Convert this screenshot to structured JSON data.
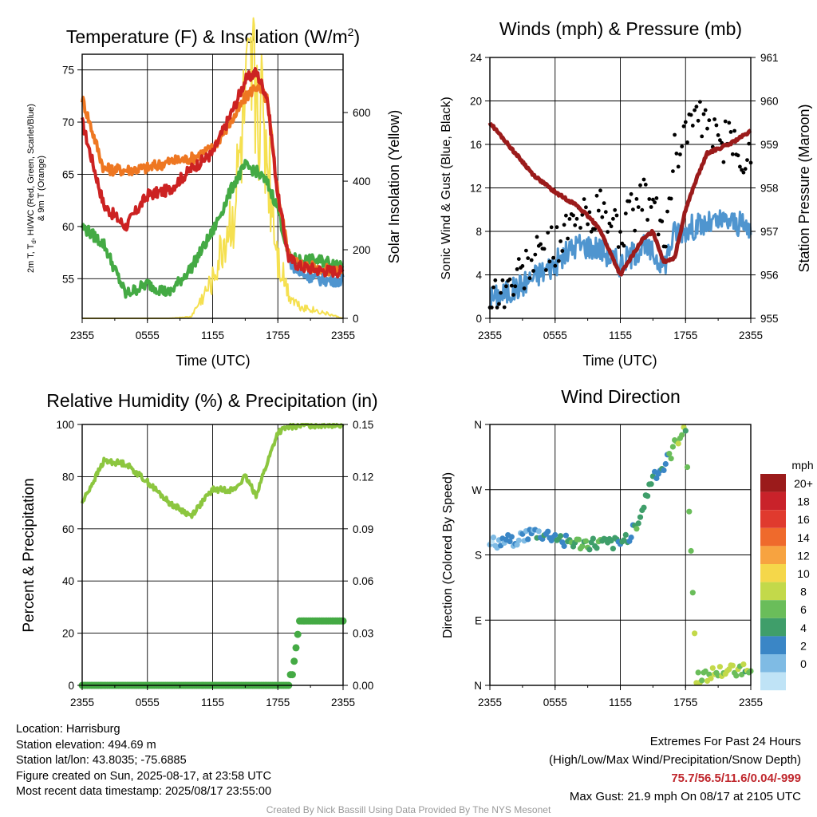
{
  "colors": {
    "red": "#cc2222",
    "orange": "#ee7722",
    "green": "#44aa44",
    "yellow": "#f5e050",
    "blue": "#4f95cf",
    "maroon": "#9b1b1b",
    "lightgreen": "#8cc63f",
    "black": "#000000",
    "extreme": "#c0272d"
  },
  "x_ticks": [
    "2355",
    "0555",
    "1155",
    "1755",
    "2355"
  ],
  "temp": {
    "title": "Temperature (F) & Insolation (W/m",
    "title_sup": "2",
    "title_end": ")",
    "ylabel_line1": "2m T, T",
    "ylabel_sub": "d",
    "ylabel_line1_end": ", HI/WC (Red, Green, Scarlet/Blue)",
    "ylabel_line2": "& 9m T (Orange)",
    "yright_label": "Solar Insolation (Yellow)",
    "xlabel": "Time (UTC)",
    "y_ticks": [
      "55",
      "60",
      "65",
      "70",
      "75"
    ],
    "y2_ticks": [
      "0",
      "200",
      "400",
      "600"
    ]
  },
  "wind": {
    "title": "Winds (mph) & Pressure (mb)",
    "ylabel": "Sonic Wind & Gust (Blue, Black)",
    "yright_label": "Station Pressure (Maroon)",
    "xlabel": "Time (UTC)",
    "y_ticks": [
      "0",
      "4",
      "8",
      "12",
      "16",
      "20",
      "24"
    ],
    "y2_ticks": [
      "955",
      "956",
      "957",
      "958",
      "959",
      "960",
      "961"
    ]
  },
  "rh": {
    "title": "Relative Humidity (%) & Precipitation (in)",
    "ylabel": "Percent & Precipitation",
    "y_ticks": [
      "0",
      "20",
      "40",
      "60",
      "80",
      "100"
    ],
    "y2_ticks": [
      "0.00",
      "0.03",
      "0.06",
      "0.09",
      "0.12",
      "0.15"
    ]
  },
  "dir": {
    "title": "Wind Direction",
    "ylabel": "Direction (Colored By Speed)",
    "y_ticks": [
      "N",
      "E",
      "S",
      "W",
      "N"
    ],
    "legend_title": "mph",
    "legend_labels": [
      "20+",
      "18",
      "16",
      "14",
      "12",
      "10",
      "8",
      "6",
      "4",
      "2",
      "0"
    ],
    "legend_colors": [
      "#9b1b1b",
      "#c9222a",
      "#e03a2e",
      "#ef6a2c",
      "#f7a340",
      "#f5d74a",
      "#c3d94a",
      "#6abd5a",
      "#3f9e6a",
      "#3a86c6",
      "#7fbbe4",
      "#bfe3f6"
    ]
  },
  "info": {
    "location": "Location: Harrisburg",
    "elevation": "Station elevation: 494.69 m",
    "latlon": "Station lat/lon: 43.8035; -75.6885",
    "created": "Figure created on Sun, 2025-08-17, at 23:58 UTC",
    "recent": "Most recent data timestamp: 2025/08/17 23:55:00"
  },
  "extremes": {
    "line1": "Extremes For Past 24 Hours",
    "line2": "(High/Low/Max Wind/Precipitation/Snow Depth)",
    "values": "75.7/56.5/11.6/0.04/-999",
    "gust": "Max Gust: 21.9 mph On 08/17 at 2105 UTC"
  },
  "credit": "Created By Nick Bassill Using Data Provided By The NYS Mesonet",
  "chart_data": [
    {
      "type": "line",
      "title": "Temperature (F) & Insolation (W/m2)",
      "xlabel": "Time (UTC)",
      "ylabel": "2m T, Td, HI/WC (Red, Green, Scarlet/Blue) & 9m T (Orange)",
      "y2label": "Solar Insolation (Yellow)",
      "x_hours": [
        0,
        2,
        4,
        6,
        8,
        10,
        12,
        14,
        15,
        16,
        17,
        18,
        19,
        20,
        22,
        24
      ],
      "ylim": [
        51.2,
        76.5
      ],
      "y2lim": [
        0,
        770
      ],
      "series": [
        {
          "name": "2m T (Red)",
          "values": [
            70,
            62,
            60,
            63,
            63.5,
            65.5,
            67,
            71.5,
            74,
            74.8,
            72.5,
            63,
            57,
            56.2,
            55.8,
            55.7
          ]
        },
        {
          "name": "9m T (Orange)",
          "values": [
            72.3,
            65.5,
            65.4,
            65.6,
            66.2,
            66.5,
            67.5,
            70.5,
            72.3,
            73.5,
            72.2,
            63.2,
            57.3,
            56.4,
            55.9,
            55.5
          ]
        },
        {
          "name": "Td (Green)",
          "values": [
            60,
            58.3,
            53.5,
            54.5,
            53.6,
            56,
            59.5,
            64.2,
            65.8,
            65.3,
            64.2,
            61.8,
            57,
            56.8,
            56.7,
            56.4
          ]
        },
        {
          "name": "WC (Blue)",
          "values": [
            null,
            null,
            null,
            null,
            null,
            null,
            null,
            null,
            null,
            null,
            null,
            null,
            56.8,
            55.5,
            54.9,
            54.8
          ]
        },
        {
          "name": "Solar Insolation (Yellow)",
          "values": [
            0,
            0,
            0,
            0,
            0,
            5,
            120,
            350,
            650,
            750,
            540,
            200,
            80,
            40,
            20,
            0
          ]
        }
      ]
    },
    {
      "type": "line",
      "title": "Winds (mph) & Pressure (mb)",
      "xlabel": "Time (UTC)",
      "ylabel": "Sonic Wind & Gust (Blue, Black)",
      "y2label": "Station Pressure (Maroon)",
      "x_hours": [
        0,
        2,
        4,
        6,
        8,
        10,
        12,
        14,
        15,
        16,
        17,
        18,
        19,
        20,
        22,
        24
      ],
      "ylim": [
        0,
        24
      ],
      "y2lim": [
        955,
        961
      ],
      "series": [
        {
          "name": "Sonic Wind (Blue)",
          "values": [
            1.8,
            2.5,
            3.8,
            5,
            6.8,
            6.5,
            5,
            6.6,
            6,
            4.8,
            8,
            8.2,
            8.5,
            8.6,
            9,
            8.2
          ]
        },
        {
          "name": "Gust (Black)",
          "values": [
            2,
            3,
            5.5,
            6.8,
            9,
            10,
            8,
            11,
            10.5,
            7,
            15,
            17.5,
            18.5,
            17,
            16,
            14.5
          ]
        },
        {
          "name": "Station Pressure (Maroon)",
          "values": [
            959.5,
            958.9,
            958.3,
            957.9,
            957.6,
            957.1,
            956,
            956.8,
            957,
            956.3,
            956.4,
            957.5,
            958.2,
            958.8,
            959,
            959.3
          ]
        }
      ]
    },
    {
      "type": "line",
      "title": "Relative Humidity (%) & Precipitation (in)",
      "ylabel": "Percent & Precipitation",
      "x_hours": [
        0,
        2,
        4,
        6,
        8,
        10,
        12,
        14,
        15,
        16,
        17,
        18,
        19,
        20,
        22,
        24
      ],
      "ylim": [
        0,
        100
      ],
      "y2lim": [
        0,
        0.15
      ],
      "series": [
        {
          "name": "Relative Humidity",
          "values": [
            70,
            86,
            85,
            78,
            70,
            65,
            75,
            75,
            80,
            73,
            85,
            97,
            99,
            99.6,
            99.8,
            100
          ]
        },
        {
          "name": "Precipitation",
          "values": [
            0,
            0,
            0,
            0,
            0,
            0,
            0,
            0,
            0,
            0,
            0,
            0,
            0,
            0.037,
            0.037,
            0.037
          ]
        }
      ]
    },
    {
      "type": "scatter",
      "title": "Wind Direction",
      "ylabel": "Direction (Colored By Speed)",
      "y_categories": [
        "N",
        "E",
        "S",
        "W",
        "N"
      ],
      "ylim": [
        0,
        360
      ],
      "x_hours": [
        0,
        2,
        4,
        6,
        8,
        10,
        12,
        13,
        14,
        15,
        16,
        17,
        18,
        19,
        20,
        22,
        24
      ],
      "direction_deg": [
        195,
        200,
        210,
        205,
        195,
        195,
        195,
        210,
        240,
        290,
        300,
        330,
        360,
        10,
        15,
        20,
        25
      ],
      "color_scale": "speed (mph), 0 to 20+"
    }
  ]
}
